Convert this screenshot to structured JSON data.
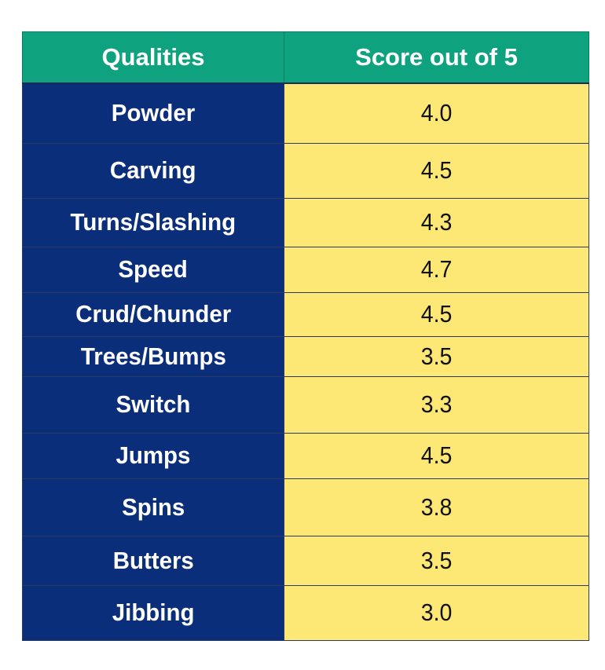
{
  "chart_data": {
    "type": "table",
    "columns": [
      "Qualities",
      "Score out of 5"
    ],
    "rows": [
      {
        "quality": "Powder",
        "score": "4.0"
      },
      {
        "quality": "Carving",
        "score": "4.5"
      },
      {
        "quality": "Turns/Slashing",
        "score": "4.3"
      },
      {
        "quality": "Speed",
        "score": "4.7"
      },
      {
        "quality": "Crud/Chunder",
        "score": "4.5"
      },
      {
        "quality": "Trees/Bumps",
        "score": "3.5"
      },
      {
        "quality": "Switch",
        "score": "3.3"
      },
      {
        "quality": "Jumps",
        "score": "4.5"
      },
      {
        "quality": "Spins",
        "score": "3.8"
      },
      {
        "quality": "Butters",
        "score": "3.5"
      },
      {
        "quality": "Jibbing",
        "score": "3.0"
      }
    ],
    "colors": {
      "header_bg": "#0fa27e",
      "quality_bg": "#0b2e7a",
      "score_bg": "#fde875"
    }
  }
}
